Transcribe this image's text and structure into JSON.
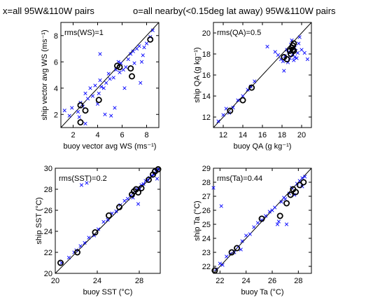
{
  "header": {
    "left": "x=all 95W&110W pairs",
    "right": "o=all nearby(<0.15deg lat away) 95W&110W pairs"
  },
  "chart_data": [
    {
      "type": "scatter",
      "xlabel": "buoy vector avg WS (ms⁻¹)",
      "ylabel": "ship vector avg WS (ms⁻¹)",
      "annotation": "rms(WS)=1",
      "xlim": [
        1,
        9
      ],
      "ylim": [
        1,
        9
      ],
      "xticks": [
        "2",
        "4",
        "6",
        "8"
      ],
      "xtick_vals": [
        2,
        4,
        6,
        8
      ],
      "yticks": [
        "2",
        "4",
        "6",
        "8"
      ],
      "ytick_vals": [
        2,
        4,
        6,
        8
      ],
      "series": [
        {
          "marker": "x",
          "color": "#0000ff",
          "x": [
            1.3,
            1.7,
            1.9,
            2.4,
            2.5,
            2.6,
            2.8,
            3.0,
            3.2,
            3.4,
            3.6,
            3.8,
            4.0,
            4.1,
            4.2,
            4.3,
            4.5,
            4.6,
            4.7,
            4.9,
            5.0,
            5.1,
            5.3,
            5.5,
            5.7,
            5.8,
            5.9,
            6.1,
            6.3,
            6.5,
            6.7,
            6.9,
            7.0,
            7.2,
            7.4,
            7.6,
            7.7,
            7.8,
            8.0,
            8.3,
            8.5,
            4.2,
            3.0,
            5.4,
            6.2,
            7.5
          ],
          "y": [
            2.3,
            1.9,
            2.5,
            2.2,
            1.8,
            2.9,
            2.6,
            3.6,
            3.2,
            4.0,
            3.4,
            4.2,
            2.8,
            3.6,
            6.6,
            4.1,
            4.0,
            2.0,
            4.4,
            5.1,
            4.7,
            1.9,
            4.8,
            5.4,
            6.0,
            5.2,
            5.9,
            5.4,
            5.6,
            6.2,
            6.6,
            6.8,
            5.9,
            7.0,
            7.2,
            6.0,
            6.5,
            7.1,
            7.4,
            7.9,
            8.4,
            4.6,
            1.3,
            2.5,
            4.0,
            4.4
          ]
        },
        {
          "marker": "o",
          "color": "#000000",
          "x": [
            2.6,
            2.6,
            3.0,
            4.1,
            5.6,
            5.8,
            6.7,
            6.8,
            8.3
          ],
          "y": [
            2.7,
            1.4,
            2.3,
            3.1,
            5.7,
            5.6,
            5.5,
            4.9,
            7.7
          ]
        }
      ]
    },
    {
      "type": "scatter",
      "xlabel": "buoy QA (g kg⁻¹)",
      "ylabel": "ship QA (g kg⁻¹)",
      "annotation": "rms(QA)=0.5",
      "xlim": [
        11,
        21
      ],
      "ylim": [
        11,
        21
      ],
      "xticks": [
        "12",
        "14",
        "16",
        "18",
        "20"
      ],
      "xtick_vals": [
        12,
        14,
        16,
        18,
        20
      ],
      "yticks": [
        "12",
        "14",
        "16",
        "18",
        "20"
      ],
      "ytick_vals": [
        12,
        14,
        16,
        18,
        20
      ],
      "series": [
        {
          "marker": "x",
          "color": "#0000ff",
          "x": [
            11.5,
            12.0,
            12.3,
            12.6,
            13.0,
            13.5,
            14.0,
            14.5,
            14.8,
            15.2,
            16.5,
            17.3,
            17.6,
            17.9,
            18.1,
            18.3,
            18.5,
            18.6,
            18.8,
            18.9,
            19.0,
            19.1,
            19.2,
            19.3,
            19.4,
            19.5,
            19.6,
            19.7,
            19.8,
            20.0,
            20.3,
            20.6,
            18.2,
            18.7,
            19.3,
            19.0
          ],
          "y": [
            11.6,
            12.2,
            12.8,
            12.4,
            12.9,
            13.6,
            14.0,
            14.6,
            14.9,
            15.4,
            18.7,
            18.2,
            17.9,
            17.5,
            17.3,
            17.8,
            18.4,
            17.2,
            17.6,
            18.9,
            18.3,
            18.0,
            17.4,
            17.7,
            18.3,
            17.6,
            18.1,
            19.0,
            19.6,
            18.4,
            18.1,
            17.5,
            16.4,
            18.2,
            18.6,
            19.3
          ]
        },
        {
          "marker": "o",
          "color": "#000000",
          "x": [
            12.7,
            14.0,
            14.9,
            18.2,
            18.5,
            18.8,
            18.9,
            19.0,
            19.1,
            19.1,
            19.2,
            19.2
          ],
          "y": [
            12.6,
            13.6,
            14.8,
            17.7,
            17.5,
            18.3,
            18.0,
            18.6,
            18.4,
            18.8,
            19.0,
            18.3
          ]
        }
      ]
    },
    {
      "type": "scatter",
      "xlabel": "buoy SST (°C)",
      "ylabel": "ship SST (°C)",
      "annotation": "rms(SST)=0.2",
      "xlim": [
        20,
        30
      ],
      "ylim": [
        20,
        30
      ],
      "xticks": [
        "20",
        "24",
        "28"
      ],
      "xtick_vals": [
        20,
        24,
        28
      ],
      "yticks": [
        "20",
        "22",
        "24",
        "26",
        "28",
        "30"
      ],
      "ytick_vals": [
        20,
        22,
        24,
        26,
        28,
        30
      ],
      "series": [
        {
          "marker": "x",
          "color": "#0000ff",
          "x": [
            20.6,
            21.3,
            21.8,
            22.0,
            22.4,
            22.8,
            23.2,
            23.7,
            24.1,
            24.6,
            25.0,
            25.4,
            25.8,
            26.2,
            26.6,
            26.9,
            27.2,
            27.4,
            27.6,
            27.8,
            28.0,
            28.2,
            28.4,
            28.6,
            28.8,
            29.0,
            29.2,
            29.4,
            29.6,
            29.8,
            22.5,
            23.0,
            27.9,
            29.7
          ],
          "y": [
            21.0,
            21.5,
            22.0,
            22.2,
            22.6,
            22.9,
            23.4,
            23.6,
            24.2,
            24.9,
            25.1,
            25.7,
            25.9,
            26.5,
            26.9,
            27.1,
            27.4,
            27.2,
            27.8,
            28.0,
            28.1,
            28.4,
            28.5,
            28.8,
            28.9,
            29.1,
            29.3,
            29.4,
            29.7,
            29.9,
            28.4,
            28.6,
            26.6,
            29.0
          ]
        },
        {
          "marker": "o",
          "color": "#000000",
          "x": [
            20.5,
            22.1,
            23.8,
            25.1,
            26.1,
            27.3,
            27.5,
            27.7,
            27.9,
            28.2,
            28.9,
            29.3,
            29.5,
            29.8
          ],
          "y": [
            21.0,
            22.0,
            23.9,
            25.5,
            26.3,
            27.5,
            27.8,
            28.0,
            27.7,
            28.1,
            28.9,
            29.4,
            29.7,
            29.9
          ]
        }
      ]
    },
    {
      "type": "scatter",
      "xlabel": "buoy Ta (°C)",
      "ylabel": "ship Ta (°C)",
      "annotation": "rms(Ta)=0.44",
      "xlim": [
        21.5,
        29
      ],
      "ylim": [
        21.5,
        29
      ],
      "xticks": [
        "22",
        "24",
        "26",
        "28"
      ],
      "xtick_vals": [
        22,
        24,
        26,
        28
      ],
      "yticks": [
        "22",
        "23",
        "24",
        "25",
        "26",
        "27",
        "28",
        "29"
      ],
      "ytick_vals": [
        22,
        23,
        24,
        25,
        26,
        27,
        28,
        29
      ],
      "series": [
        {
          "marker": "x",
          "color": "#0000ff",
          "x": [
            21.5,
            21.7,
            22.0,
            22.2,
            22.5,
            22.8,
            23.1,
            23.4,
            23.7,
            24.0,
            24.3,
            24.6,
            24.9,
            25.2,
            25.5,
            25.8,
            26.0,
            26.2,
            26.5,
            26.7,
            26.9,
            27.1,
            27.3,
            27.5,
            27.7,
            27.9,
            28.1,
            28.3,
            28.5,
            22.1,
            23.6,
            26.4,
            27.0,
            28.3
          ],
          "y": [
            27.6,
            21.8,
            22.2,
            22.1,
            22.7,
            22.9,
            23.0,
            23.4,
            23.8,
            24.2,
            24.3,
            24.8,
            25.1,
            25.3,
            25.6,
            25.9,
            26.0,
            26.2,
            25.2,
            26.6,
            26.9,
            25.0,
            27.2,
            27.6,
            27.1,
            27.9,
            28.1,
            28.3,
            28.4,
            26.3,
            23.2,
            25.0,
            26.8,
            27.7
          ]
        },
        {
          "marker": "o",
          "color": "#000000",
          "x": [
            21.6,
            22.9,
            23.3,
            25.2,
            26.6,
            27.1,
            27.4,
            27.6,
            27.8,
            28.1,
            28.4
          ],
          "y": [
            21.7,
            23.0,
            23.3,
            25.4,
            25.6,
            26.5,
            27.1,
            27.5,
            27.3,
            27.8,
            28.0
          ]
        }
      ]
    }
  ]
}
